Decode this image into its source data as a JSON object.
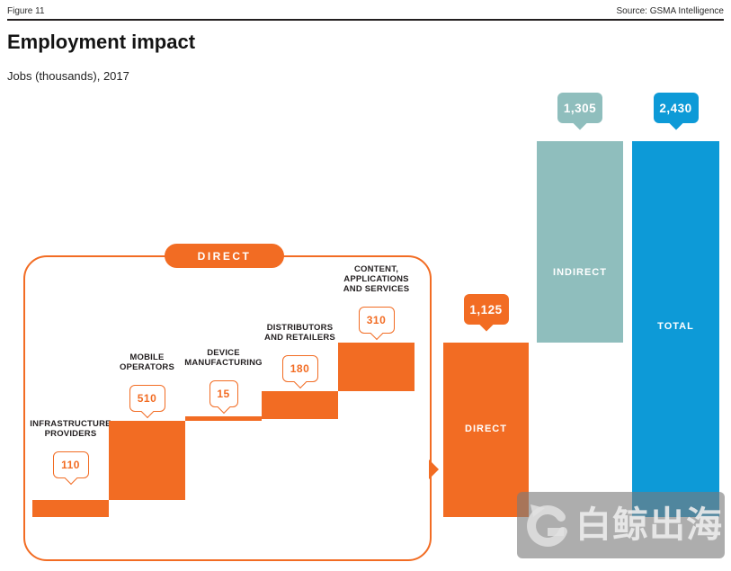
{
  "header": {
    "figure_label": "Figure 11",
    "source_label": "Source: GSMA Intelligence"
  },
  "colors": {
    "orange": "#F26C23",
    "teal": "#8FBEBD",
    "blue": "#0D9AD7",
    "ink": "#231F20"
  },
  "watermark": {
    "text": "白鲸出海",
    "logo": "baijing-whale-g-logo"
  },
  "chart_data": {
    "type": "bar",
    "subtype": "waterfall",
    "title": "Employment impact",
    "subtitle": "Jobs (thousands), 2017",
    "unit": "jobs (thousands)",
    "year": "2017",
    "group_label": "DIRECT",
    "grid": false,
    "legend": false,
    "ylim": [
      0,
      2430
    ],
    "categories": [
      "Infrastructure providers",
      "Mobile operators",
      "Device manufacturing",
      "Distributors and retailers",
      "Content, applications and services"
    ],
    "direct_components": [
      {
        "slug": "infrastructure-providers",
        "lines": [
          "INFRASTRUCTURE",
          "PROVIDERS"
        ],
        "value": 110,
        "display": "110"
      },
      {
        "slug": "mobile-operators",
        "lines": [
          "MOBILE",
          "OPERATORS"
        ],
        "value": 510,
        "display": "510"
      },
      {
        "slug": "device-manufacturing",
        "lines": [
          "DEVICE",
          "MANUFACTURING"
        ],
        "value": 15,
        "display": "15"
      },
      {
        "slug": "distributors-and-retailers",
        "lines": [
          "DISTRIBUTORS",
          "AND RETAILERS"
        ],
        "value": 180,
        "display": "180"
      },
      {
        "slug": "content-applications-and-services",
        "lines": [
          "CONTENT,",
          "APPLICATIONS",
          "AND SERVICES"
        ],
        "value": 310,
        "display": "310"
      }
    ],
    "summary": [
      {
        "slug": "direct",
        "name": "DIRECT",
        "value": 1125,
        "display": "1,125",
        "color_key": "orange"
      },
      {
        "slug": "indirect",
        "name": "INDIRECT",
        "value": 1305,
        "display": "1,305",
        "color_key": "teal"
      },
      {
        "slug": "total",
        "name": "TOTAL",
        "value": 2430,
        "display": "2,430",
        "color_key": "blue"
      }
    ]
  }
}
